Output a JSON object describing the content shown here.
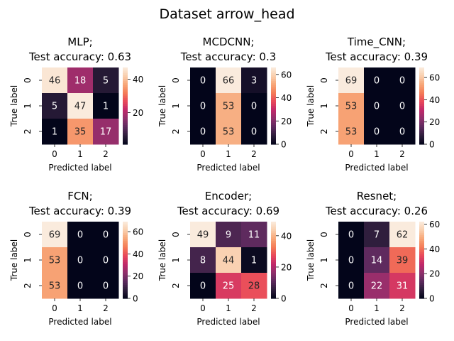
{
  "suptitle": "Dataset arrow_head",
  "colormap": [
    "#03051a",
    "#2e1e3c",
    "#5d2a5e",
    "#8f2f6b",
    "#c1286a",
    "#e8485a",
    "#f47c57",
    "#f7a677",
    "#f9cfae",
    "#faebdd"
  ],
  "chart_data": [
    {
      "type": "heatmap",
      "title": "MLP;\nTest accuracy: 0.63",
      "xlabel": "Predicted label",
      "ylabel": "True label",
      "x_ticks": [
        "0",
        "1",
        "2"
      ],
      "y_ticks": [
        "0",
        "1",
        "2"
      ],
      "matrix": [
        [
          46,
          18,
          5
        ],
        [
          5,
          47,
          1
        ],
        [
          1,
          35,
          17
        ]
      ],
      "vmin": 1,
      "vmax": 47,
      "colorbar_ticks": [
        20,
        40
      ]
    },
    {
      "type": "heatmap",
      "title": "MCDCNN;\nTest accuracy: 0.3",
      "xlabel": "Predicted label",
      "ylabel": "True label",
      "x_ticks": [
        "0",
        "1",
        "2"
      ],
      "y_ticks": [
        "0",
        "1",
        "2"
      ],
      "matrix": [
        [
          0,
          66,
          3
        ],
        [
          0,
          53,
          0
        ],
        [
          0,
          53,
          0
        ]
      ],
      "vmin": 0,
      "vmax": 66,
      "colorbar_ticks": [
        0,
        20,
        40,
        60
      ]
    },
    {
      "type": "heatmap",
      "title": "Time_CNN;\nTest accuracy: 0.39",
      "xlabel": "Predicted label",
      "ylabel": "True label",
      "x_ticks": [
        "0",
        "1",
        "2"
      ],
      "y_ticks": [
        "0",
        "1",
        "2"
      ],
      "matrix": [
        [
          69,
          0,
          0
        ],
        [
          53,
          0,
          0
        ],
        [
          53,
          0,
          0
        ]
      ],
      "vmin": 0,
      "vmax": 69,
      "colorbar_ticks": [
        0,
        20,
        40,
        60
      ]
    },
    {
      "type": "heatmap",
      "title": "FCN;\nTest accuracy: 0.39",
      "xlabel": "Predicted label",
      "ylabel": "True label",
      "x_ticks": [
        "0",
        "1",
        "2"
      ],
      "y_ticks": [
        "0",
        "1",
        "2"
      ],
      "matrix": [
        [
          69,
          0,
          0
        ],
        [
          53,
          0,
          0
        ],
        [
          53,
          0,
          0
        ]
      ],
      "vmin": 0,
      "vmax": 69,
      "colorbar_ticks": [
        0,
        20,
        40,
        60
      ]
    },
    {
      "type": "heatmap",
      "title": "Encoder;\nTest accuracy: 0.69",
      "xlabel": "Predicted label",
      "ylabel": "True label",
      "x_ticks": [
        "0",
        "1",
        "2"
      ],
      "y_ticks": [
        "0",
        "1",
        "2"
      ],
      "matrix": [
        [
          49,
          9,
          11
        ],
        [
          8,
          44,
          1
        ],
        [
          0,
          25,
          28
        ]
      ],
      "vmin": 0,
      "vmax": 49,
      "colorbar_ticks": [
        0,
        20,
        40
      ]
    },
    {
      "type": "heatmap",
      "title": "Resnet;\nTest accuracy: 0.26",
      "xlabel": "Predicted label",
      "ylabel": "True label",
      "x_ticks": [
        "0",
        "1",
        "2"
      ],
      "y_ticks": [
        "0",
        "1",
        "2"
      ],
      "matrix": [
        [
          0,
          7,
          62
        ],
        [
          0,
          14,
          39
        ],
        [
          0,
          22,
          31
        ]
      ],
      "vmin": 0,
      "vmax": 62,
      "colorbar_ticks": [
        0,
        20,
        40,
        60
      ]
    }
  ]
}
